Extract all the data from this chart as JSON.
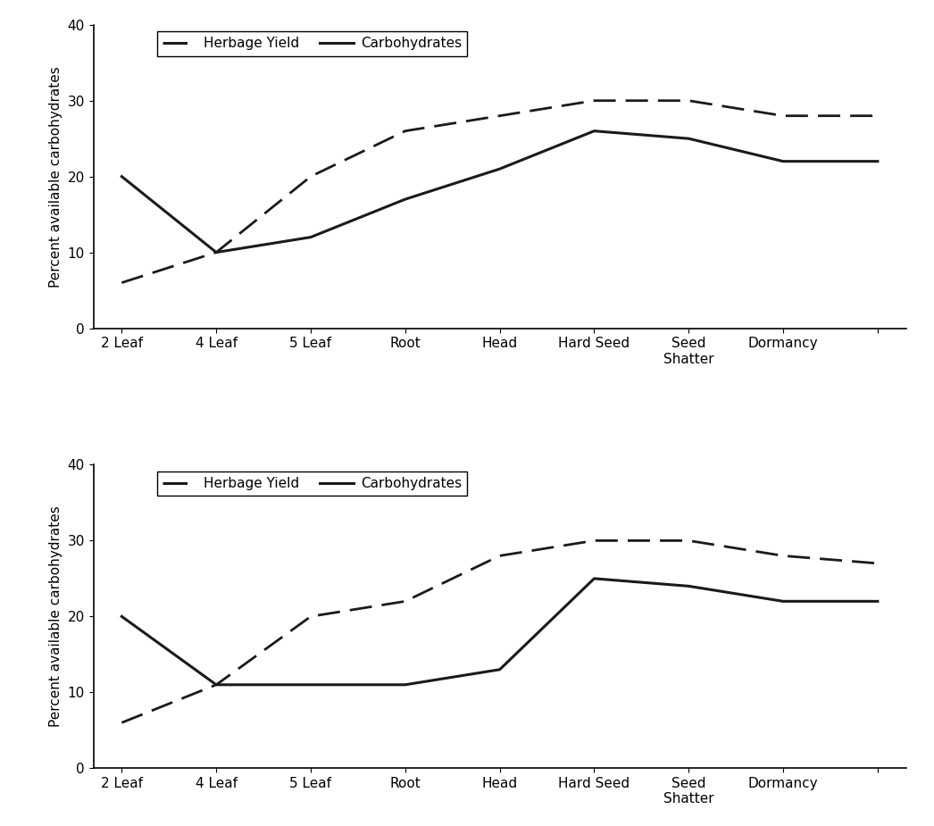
{
  "x_labels": [
    "2 Leaf",
    "4 Leaf",
    "5 Leaf",
    "Root",
    "Head",
    "Hard Seed",
    "Seed\nShatter",
    "Dormancy",
    ""
  ],
  "x_positions": [
    0,
    1,
    2,
    3,
    4,
    5,
    6,
    7,
    8
  ],
  "top": {
    "herbage_yield": [
      6,
      10,
      20,
      26,
      28,
      30,
      30,
      28,
      28
    ],
    "carbohydrates": [
      20,
      10,
      12,
      17,
      21,
      26,
      25,
      22,
      22
    ]
  },
  "bottom": {
    "herbage_yield": [
      6,
      11,
      20,
      22,
      28,
      30,
      30,
      28,
      27
    ],
    "carbohydrates": [
      20,
      11,
      11,
      11,
      13,
      25,
      24,
      22,
      22
    ]
  },
  "ylabel": "Percent available carbohydrates",
  "ylim": [
    0,
    40
  ],
  "yticks": [
    0,
    10,
    20,
    30,
    40
  ],
  "legend_herbage": "Herbage Yield",
  "legend_carbo": "Carbohydrates",
  "line_color": "#1a1a1a",
  "background_color": "#ffffff",
  "fontsize_tick": 11,
  "fontsize_label": 11,
  "fontsize_legend": 11
}
